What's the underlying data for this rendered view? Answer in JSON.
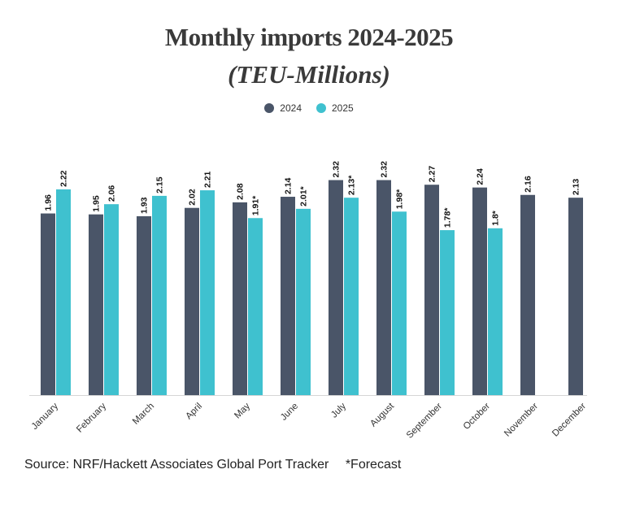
{
  "chart_data": {
    "type": "bar",
    "title": "Monthly imports 2024-2025",
    "subtitle": "(TEU-Millions)",
    "categories": [
      "January",
      "February",
      "March",
      "April",
      "May",
      "June",
      "July",
      "August",
      "September",
      "October",
      "November",
      "December"
    ],
    "series": [
      {
        "name": "2024",
        "color": "#4a5568",
        "values": [
          1.96,
          1.95,
          1.93,
          2.02,
          2.08,
          2.14,
          2.32,
          2.32,
          2.27,
          2.24,
          2.16,
          2.13
        ],
        "labels": [
          "1.96",
          "1.95",
          "1.93",
          "2.02",
          "2.08",
          "2.14",
          "2.32",
          "2.32",
          "2.27",
          "2.24",
          "2.16",
          "2.13"
        ]
      },
      {
        "name": "2025",
        "color": "#3fc1cf",
        "values": [
          2.22,
          2.06,
          2.15,
          2.21,
          1.91,
          2.01,
          2.13,
          1.98,
          1.78,
          1.8,
          null,
          null
        ],
        "labels": [
          "2.22",
          "2.06",
          "2.15",
          "2.21",
          "1.91*",
          "2.01*",
          "2.13*",
          "1.98*",
          "1.78*",
          "1.8*",
          "",
          ""
        ]
      }
    ],
    "xlabel": "",
    "ylabel": "",
    "ylim": [
      0,
      2.4
    ],
    "legend_position": "top-center",
    "grid": false
  },
  "footer": {
    "source": "Source: NRF/Hackett Associates Global Port Tracker",
    "note": "*Forecast"
  }
}
